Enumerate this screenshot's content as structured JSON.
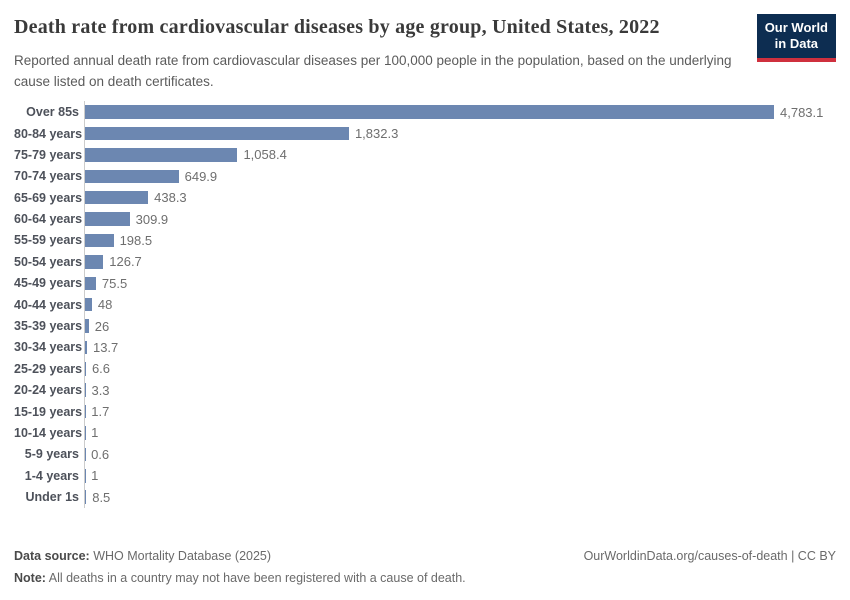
{
  "header": {
    "logo": {
      "line1": "Our World",
      "line2": "in Data"
    }
  },
  "chart_data": {
    "type": "bar",
    "orientation": "horizontal",
    "title": "Death rate from cardiovascular diseases by age group, United States, 2022",
    "subtitle": "Reported annual death rate from cardiovascular diseases per 100,000 people in the population, based on the underlying cause listed on death certificates.",
    "categories": [
      "Over 85s",
      "80-84 years",
      "75-79 years",
      "70-74 years",
      "65-69 years",
      "60-64 years",
      "55-59 years",
      "50-54 years",
      "45-49 years",
      "40-44 years",
      "35-39 years",
      "30-34 years",
      "25-29 years",
      "20-24 years",
      "15-19 years",
      "10-14 years",
      "5-9 years",
      "1-4 years",
      "Under 1s"
    ],
    "values": [
      4783.1,
      1832.3,
      1058.4,
      649.9,
      438.3,
      309.9,
      198.5,
      126.7,
      75.5,
      48,
      26,
      13.7,
      6.6,
      3.3,
      1.7,
      1,
      0.6,
      1,
      8.5
    ],
    "value_labels": [
      "4,783.1",
      "1,832.3",
      "1,058.4",
      "649.9",
      "438.3",
      "309.9",
      "198.5",
      "126.7",
      "75.5",
      "48",
      "26",
      "13.7",
      "6.6",
      "3.3",
      "1.7",
      "1",
      "0.6",
      "1",
      "8.5"
    ],
    "xlim": [
      0,
      4783.1
    ],
    "grid": false,
    "legend": "none",
    "bar_color": "#6c87b1",
    "axis_line_color": "#cccccc"
  },
  "footer": {
    "source_label": "Data source:",
    "source_text": " WHO Mortality Database (2025)",
    "link_text": "OurWorldinData.org/causes-of-death | CC BY",
    "note_label": "Note:",
    "note_text": " All deaths in a country may not have been registered with a cause of death."
  }
}
